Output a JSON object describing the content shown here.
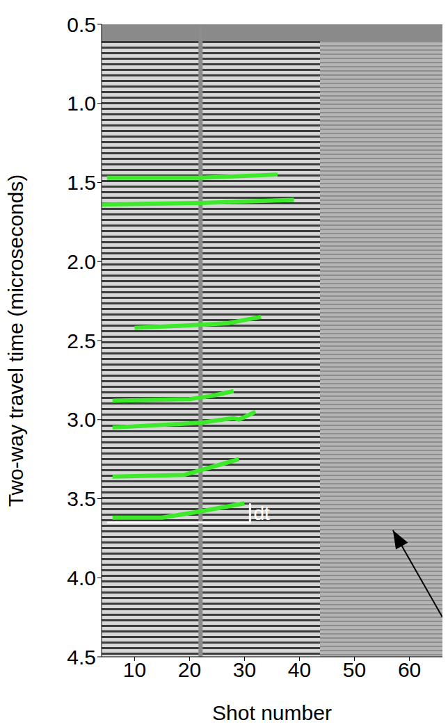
{
  "chart_data": {
    "type": "line",
    "x_label": "Shot number",
    "y_label": "Two-way travel time (microseconds)",
    "xlim": [
      4,
      66
    ],
    "xticks": [
      10,
      20,
      30,
      40,
      50,
      60
    ],
    "ylim": [
      0.5,
      4.5
    ],
    "yticks": [
      0.5,
      {
        "value": 1,
        "label": "1.0"
      },
      1.5,
      {
        "value": 2,
        "label": "2.0"
      },
      2.5,
      {
        "value": 3,
        "label": "3.0"
      },
      3.5,
      {
        "value": 4,
        "label": "4.0"
      },
      4.5
    ],
    "series": [
      {
        "color": "#3dea2a",
        "x": [
          5,
          22,
          36
        ],
        "values": [
          1.47,
          1.47,
          1.45
        ]
      },
      {
        "color": "#3dea2a",
        "x": [
          4,
          22,
          39
        ],
        "values": [
          1.64,
          1.63,
          1.61
        ]
      },
      {
        "color": "#3dea2a",
        "x": [
          10,
          22,
          27,
          33
        ],
        "values": [
          2.42,
          2.4,
          2.39,
          2.35
        ]
      },
      {
        "color": "#3dea2a",
        "x": [
          6,
          20,
          24,
          28
        ],
        "values": [
          2.88,
          2.87,
          2.85,
          2.82
        ]
      },
      {
        "color": "#3dea2a",
        "x": [
          6,
          22,
          28,
          29,
          32
        ],
        "values": [
          3.05,
          3.02,
          2.99,
          3.0,
          2.95
        ]
      },
      {
        "color": "#3dea2a",
        "x": [
          6,
          19,
          24,
          29
        ],
        "values": [
          3.36,
          3.35,
          3.3,
          3.25
        ]
      },
      {
        "color": "#3dea2a",
        "x": [
          6,
          15,
          22,
          30
        ],
        "values": [
          3.62,
          3.62,
          3.58,
          3.53
        ]
      }
    ],
    "reference_x": {
      "x": 22,
      "color": "#8c8c8c"
    },
    "annotations": [
      {
        "text": "dt",
        "x": [
          5,
          31,
          31
        ],
        "y": [
          3.65,
          3.65,
          3.53
        ],
        "color": "#ffffff"
      }
    ],
    "arrow": {
      "x": [
        66,
        57
      ],
      "y": [
        4.25,
        3.7
      ],
      "color": "#000000"
    }
  }
}
